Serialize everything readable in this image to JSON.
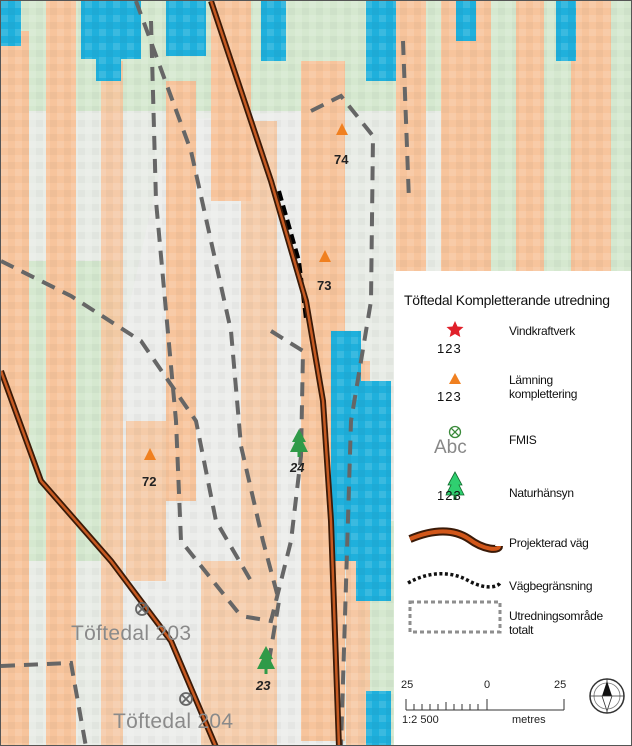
{
  "map": {
    "sites": [
      {
        "label": "74"
      },
      {
        "label": "73"
      },
      {
        "label": "72"
      },
      {
        "label": "24"
      },
      {
        "label": "23"
      }
    ],
    "place_names": [
      "Töftedal 203",
      "Töftedal 204"
    ]
  },
  "legend": {
    "title": "Töftedal Kompletterande utredning",
    "items": [
      {
        "label": "Vindkraftverk",
        "symbol": "red-star",
        "numbers": "123"
      },
      {
        "label": "Lämning komplettering",
        "symbol": "orange-triangle",
        "numbers": "123"
      },
      {
        "label": "FMIS",
        "symbol": "circle-cross",
        "text": "Abc"
      },
      {
        "label": "Naturhänsyn",
        "symbol": "green-tree",
        "numbers": "123"
      },
      {
        "label": "Projekterad väg",
        "symbol": "brown-road-line"
      },
      {
        "label": "Vägbegränsning",
        "symbol": "dotted-line"
      },
      {
        "label": "Utredningsområde totalt",
        "symbol": "dashed-rectangle"
      }
    ]
  },
  "scalebar": {
    "ticks": [
      "25",
      "0",
      "25"
    ],
    "scale": "1:2 500",
    "unit": "metres"
  },
  "colors": {
    "forest_orange": "#f7c49c",
    "meadow_green": "#d5e8cf",
    "water_cyan": "#1fb0dc",
    "road_brown": "#b8541e",
    "boundary_gray": "#666666"
  },
  "icons": [
    "north-arrow-icon"
  ]
}
